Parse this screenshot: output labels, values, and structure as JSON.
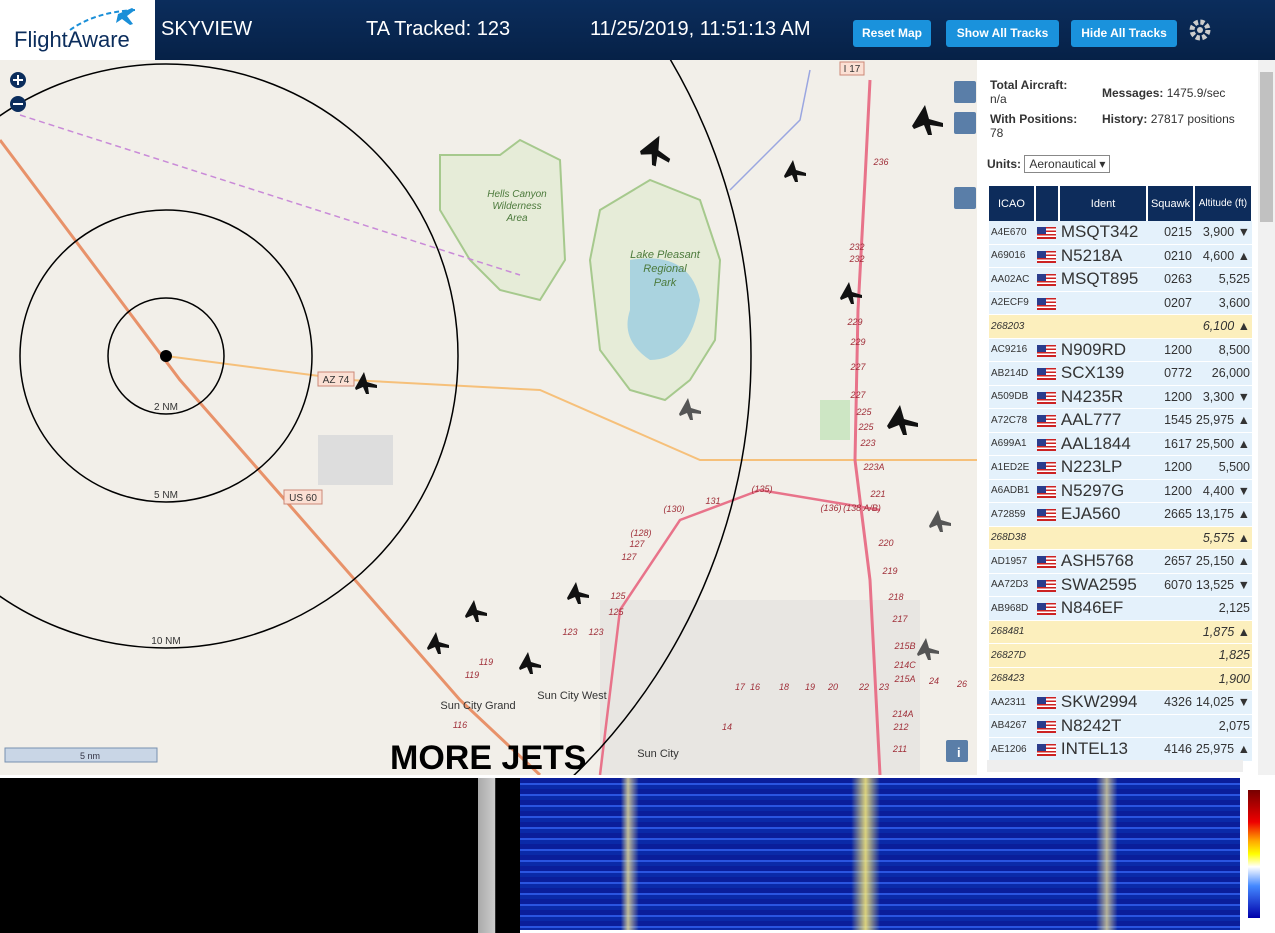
{
  "header": {
    "logo": "FlightAware",
    "title": "SKYVIEW",
    "tracked": "TA Tracked: 123",
    "datetime": "11/25/2019, 11:51:13 AM",
    "buttons": [
      "Reset Map",
      "Show All Tracks",
      "Hide All Tracks"
    ]
  },
  "map": {
    "areas": [
      "Hells Canyon",
      "Wilderness",
      "Area",
      "Lake Pleasant",
      "Regional",
      "Park"
    ],
    "places": [
      "Sun City West",
      "Sun City Grand",
      "Sun City"
    ],
    "shields": [
      "I 17",
      "AZ 74",
      "US 60"
    ],
    "rings": [
      "2 NM",
      "5 NM",
      "10 NM"
    ],
    "roads": [
      "236",
      "232",
      "232",
      "229",
      "229",
      "227",
      "227",
      "225",
      "225",
      "223",
      "223A",
      "221",
      "(136)",
      "(138 A/B)",
      "220",
      "219",
      "218",
      "217",
      "215B",
      "214C",
      "215A",
      "214A",
      "212",
      "211",
      "131",
      "(135)",
      "(130)",
      "(128)",
      "127",
      "127",
      "125",
      "125",
      "123",
      "123",
      "119",
      "119",
      "116",
      "17",
      "16",
      "18",
      "19",
      "20",
      "22",
      "23",
      "24",
      "26",
      "14"
    ],
    "scale": "5 nm",
    "overlay": "MORE JETS",
    "info": "i"
  },
  "sidebar": {
    "total_label": "Total Aircraft:",
    "total": "n/a",
    "messages_label": "Messages:",
    "messages": "1475.9/sec",
    "positions_label": "With Positions:",
    "positions": "78",
    "history_label": "History:",
    "history": "27817 positions",
    "units_label": "Units:",
    "units": "Aeronautical"
  },
  "table": {
    "columns": [
      "ICAO",
      "Ident",
      "Squawk",
      "Altitude (ft)"
    ],
    "rows": [
      {
        "icao": "A4E670",
        "flag": true,
        "ident": "MSQT342",
        "squawk": "0215",
        "altitude": "3,900",
        "trend": "▼"
      },
      {
        "icao": "A69016",
        "flag": true,
        "ident": "N5218A",
        "squawk": "0210",
        "altitude": "4,600",
        "trend": "▲"
      },
      {
        "icao": "AA02AC",
        "flag": true,
        "ident": "MSQT895",
        "squawk": "0263",
        "altitude": "5,525"
      },
      {
        "icao": "A2ECF9",
        "flag": true,
        "squawk": "0207",
        "altitude": "3,600"
      },
      {
        "icao": "268203",
        "anon": true,
        "altitude": "6,100",
        "trend": "▲"
      },
      {
        "icao": "AC9216",
        "flag": true,
        "ident": "N909RD",
        "squawk": "1200",
        "altitude": "8,500"
      },
      {
        "icao": "AB214D",
        "flag": true,
        "ident": "SCX139",
        "squawk": "0772",
        "altitude": "26,000"
      },
      {
        "icao": "A509DB",
        "flag": true,
        "ident": "N4235R",
        "squawk": "1200",
        "altitude": "3,300",
        "trend": "▼"
      },
      {
        "icao": "A72C78",
        "flag": true,
        "ident": "AAL777",
        "squawk": "1545",
        "altitude": "25,975",
        "trend": "▲"
      },
      {
        "icao": "A699A1",
        "flag": true,
        "ident": "AAL1844",
        "squawk": "1617",
        "altitude": "25,500",
        "trend": "▲"
      },
      {
        "icao": "A1ED2E",
        "flag": true,
        "ident": "N223LP",
        "squawk": "1200",
        "altitude": "5,500"
      },
      {
        "icao": "A6ADB1",
        "flag": true,
        "ident": "N5297G",
        "squawk": "1200",
        "altitude": "4,400",
        "trend": "▼"
      },
      {
        "icao": "A72859",
        "flag": true,
        "ident": "EJA560",
        "squawk": "2665",
        "altitude": "13,175",
        "trend": "▲"
      },
      {
        "icao": "268D38",
        "anon": true,
        "altitude": "5,575",
        "trend": "▲"
      },
      {
        "icao": "AD1957",
        "flag": true,
        "ident": "ASH5768",
        "squawk": "2657",
        "altitude": "25,150",
        "trend": "▲"
      },
      {
        "icao": "AA72D3",
        "flag": true,
        "ident": "SWA2595",
        "squawk": "6070",
        "altitude": "13,525",
        "trend": "▼"
      },
      {
        "icao": "AB968D",
        "flag": true,
        "ident": "N846EF",
        "altitude": "2,125"
      },
      {
        "icao": "268481",
        "anon": true,
        "altitude": "1,875",
        "trend": "▲"
      },
      {
        "icao": "26827D",
        "anon": true,
        "altitude": "1,825"
      },
      {
        "icao": "268423",
        "anon": true,
        "altitude": "1,900"
      },
      {
        "icao": "AA2311",
        "flag": true,
        "ident": "SKW2994",
        "squawk": "4326",
        "altitude": "14,025",
        "trend": "▼"
      },
      {
        "icao": "AB4267",
        "flag": true,
        "ident": "N8242T",
        "altitude": "2,075"
      },
      {
        "icao": "AE1206",
        "flag": true,
        "ident": "INTEL13",
        "squawk": "4146",
        "altitude": "25,975",
        "trend": "▲"
      }
    ]
  }
}
